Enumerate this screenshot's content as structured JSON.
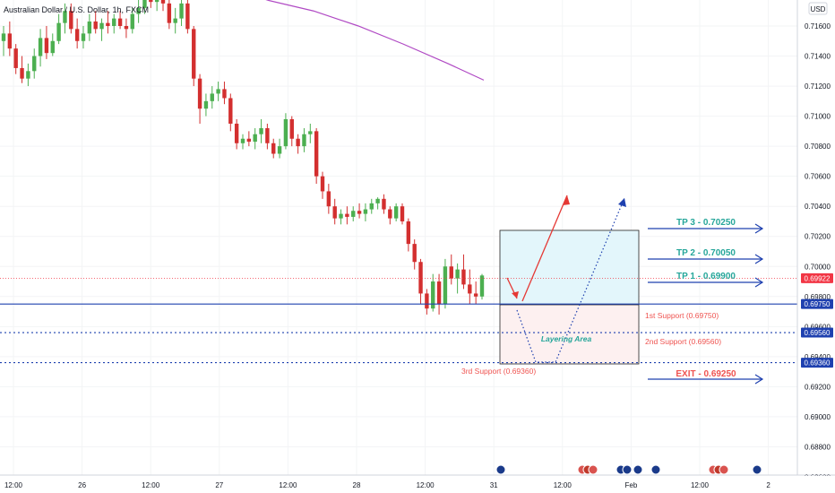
{
  "header": {
    "symbol_title": "Australian Dollar / U.S. Dollar, 1h, FXCM"
  },
  "price_axis": {
    "currency": "USD",
    "ticks": [
      "0.71600",
      "0.71400",
      "0.71200",
      "0.71000",
      "0.70800",
      "0.70600",
      "0.70400",
      "0.70200",
      "0.70000",
      "0.69800",
      "0.69600",
      "0.69400",
      "0.69200",
      "0.69000",
      "0.68800",
      "0.68600"
    ],
    "current_price": "0.69922",
    "badges": [
      "0.69750",
      "0.69560",
      "0.69360"
    ]
  },
  "time_axis": {
    "ticks": [
      "12:00",
      "26",
      "12:00",
      "27",
      "12:00",
      "28",
      "12:00",
      "31",
      "12:00",
      "Feb",
      "12:00",
      "2"
    ]
  },
  "annotations": {
    "tp3": "TP 3 - 0.70250",
    "tp2": "TP 2 - 0.70050",
    "tp1": "TP 1 - 0.69900",
    "support1": "1st Support (0.69750)",
    "support2": "2nd Support (0.69560)",
    "support3": "3rd Support (0.69360)",
    "exit": "EXIT - 0.69250",
    "layering": "Layering Area"
  },
  "colors": {
    "bull": "#4caf50",
    "bear": "#d32f2f",
    "ma": "#b04ac4",
    "support_line": "#1e40af",
    "tp_text": "#26a69a",
    "support_text": "#ef5350",
    "arrow_blue": "#1e40af",
    "current_price": "#f23645",
    "zone_top": "#e3f6fb",
    "zone_bottom": "#fdf0f0"
  },
  "chart_data": {
    "type": "candlestick",
    "title": "Australian Dollar / U.S. Dollar, 1h, FXCM",
    "ylim": [
      0.6855,
      0.7185
    ],
    "ohlc": [
      [
        0.715,
        0.716,
        0.714,
        0.7155
      ],
      [
        0.7155,
        0.7163,
        0.714,
        0.7145
      ],
      [
        0.7145,
        0.7148,
        0.7128,
        0.7132
      ],
      [
        0.7132,
        0.714,
        0.7122,
        0.7125
      ],
      [
        0.7125,
        0.7135,
        0.712,
        0.713
      ],
      [
        0.713,
        0.7145,
        0.7125,
        0.714
      ],
      [
        0.714,
        0.7158,
        0.7133,
        0.7152
      ],
      [
        0.7152,
        0.716,
        0.7138,
        0.7142
      ],
      [
        0.7142,
        0.7155,
        0.714,
        0.715
      ],
      [
        0.715,
        0.7168,
        0.7148,
        0.7162
      ],
      [
        0.7162,
        0.7175,
        0.7155,
        0.717
      ],
      [
        0.717,
        0.7175,
        0.7155,
        0.7158
      ],
      [
        0.7158,
        0.7165,
        0.7145,
        0.715
      ],
      [
        0.715,
        0.716,
        0.7145,
        0.7155
      ],
      [
        0.7155,
        0.7168,
        0.715,
        0.7163
      ],
      [
        0.7163,
        0.717,
        0.7155,
        0.7158
      ],
      [
        0.7158,
        0.7165,
        0.715,
        0.7162
      ],
      [
        0.7162,
        0.717,
        0.7155,
        0.716
      ],
      [
        0.716,
        0.7168,
        0.7155,
        0.7165
      ],
      [
        0.7165,
        0.717,
        0.7158,
        0.716
      ],
      [
        0.716,
        0.7165,
        0.7152,
        0.7158
      ],
      [
        0.7158,
        0.7172,
        0.7155,
        0.7168
      ],
      [
        0.7168,
        0.7178,
        0.7162,
        0.7172
      ],
      [
        0.7172,
        0.7182,
        0.7168,
        0.7178
      ],
      [
        0.7178,
        0.7183,
        0.7172,
        0.7176
      ],
      [
        0.7176,
        0.7182,
        0.717,
        0.718
      ],
      [
        0.718,
        0.7183,
        0.717,
        0.7175
      ],
      [
        0.7175,
        0.718,
        0.7158,
        0.7162
      ],
      [
        0.7162,
        0.7172,
        0.7155,
        0.7165
      ],
      [
        0.7165,
        0.718,
        0.716,
        0.7175
      ],
      [
        0.7175,
        0.7185,
        0.7155,
        0.7158
      ],
      [
        0.7158,
        0.716,
        0.712,
        0.7125
      ],
      [
        0.7125,
        0.7128,
        0.7095,
        0.7105
      ],
      [
        0.7105,
        0.7115,
        0.71,
        0.711
      ],
      [
        0.711,
        0.712,
        0.7105,
        0.7115
      ],
      [
        0.7115,
        0.7123,
        0.711,
        0.7118
      ],
      [
        0.7118,
        0.7123,
        0.7108,
        0.7112
      ],
      [
        0.7112,
        0.7115,
        0.709,
        0.7095
      ],
      [
        0.7095,
        0.7098,
        0.7078,
        0.7082
      ],
      [
        0.7082,
        0.7088,
        0.7078,
        0.7085
      ],
      [
        0.7085,
        0.709,
        0.708,
        0.7083
      ],
      [
        0.7083,
        0.7092,
        0.7078,
        0.7088
      ],
      [
        0.7088,
        0.7098,
        0.7082,
        0.7092
      ],
      [
        0.7092,
        0.7095,
        0.7078,
        0.7082
      ],
      [
        0.7082,
        0.7085,
        0.7072,
        0.7075
      ],
      [
        0.7075,
        0.7085,
        0.7072,
        0.708
      ],
      [
        0.708,
        0.7102,
        0.7078,
        0.7098
      ],
      [
        0.7098,
        0.71,
        0.708,
        0.7085
      ],
      [
        0.7085,
        0.7088,
        0.7075,
        0.708
      ],
      [
        0.708,
        0.7092,
        0.7076,
        0.7088
      ],
      [
        0.7088,
        0.7095,
        0.7082,
        0.709
      ],
      [
        0.709,
        0.7092,
        0.7055,
        0.706
      ],
      [
        0.706,
        0.7063,
        0.7045,
        0.705
      ],
      [
        0.705,
        0.7055,
        0.7035,
        0.704
      ],
      [
        0.704,
        0.7045,
        0.7028,
        0.7032
      ],
      [
        0.7032,
        0.7038,
        0.7028,
        0.7035
      ],
      [
        0.7035,
        0.704,
        0.7028,
        0.7033
      ],
      [
        0.7033,
        0.704,
        0.703,
        0.7037
      ],
      [
        0.7037,
        0.7042,
        0.7032,
        0.7035
      ],
      [
        0.7035,
        0.7042,
        0.703,
        0.7038
      ],
      [
        0.7038,
        0.7045,
        0.7035,
        0.7042
      ],
      [
        0.7042,
        0.7046,
        0.7038,
        0.7045
      ],
      [
        0.7045,
        0.7048,
        0.7035,
        0.7038
      ],
      [
        0.7038,
        0.704,
        0.7028,
        0.7032
      ],
      [
        0.7032,
        0.7042,
        0.703,
        0.704
      ],
      [
        0.704,
        0.7042,
        0.7028,
        0.703
      ],
      [
        0.703,
        0.7032,
        0.701,
        0.7015
      ],
      [
        0.7015,
        0.7018,
        0.6998,
        0.7003
      ],
      [
        0.7003,
        0.7005,
        0.6975,
        0.6982
      ],
      [
        0.6982,
        0.6985,
        0.6968,
        0.6972
      ],
      [
        0.6972,
        0.6995,
        0.697,
        0.699
      ],
      [
        0.699,
        0.6995,
        0.6968,
        0.6975
      ],
      [
        0.6975,
        0.7005,
        0.6972,
        0.7
      ],
      [
        0.7,
        0.7008,
        0.6988,
        0.6992
      ],
      [
        0.6992,
        0.7002,
        0.6982,
        0.6998
      ],
      [
        0.6998,
        0.7008,
        0.6985,
        0.6988
      ],
      [
        0.6988,
        0.6998,
        0.6975,
        0.6982
      ],
      [
        0.6982,
        0.699,
        0.6975,
        0.698
      ],
      [
        0.698,
        0.6995,
        0.6978,
        0.6994
      ]
    ],
    "moving_average": [
      {
        "x": 258,
        "y": 0.71848
      },
      {
        "x": 300,
        "y": 0.7177
      },
      {
        "x": 350,
        "y": 0.717
      },
      {
        "x": 400,
        "y": 0.716
      },
      {
        "x": 450,
        "y": 0.7148
      },
      {
        "x": 500,
        "y": 0.7135
      },
      {
        "x": 540,
        "y": 0.7124
      }
    ],
    "levels": {
      "support1": 0.6975,
      "support2": 0.6956,
      "support3": 0.6936,
      "current_price": 0.69922
    }
  }
}
